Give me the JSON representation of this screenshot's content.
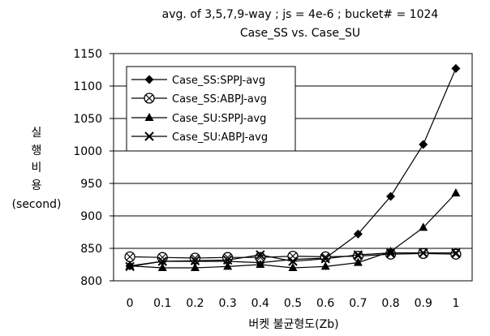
{
  "chart_data": {
    "type": "line",
    "title": "avg. of 3,5,7,9-way ; js = 4e-6 ; bucket# = 1024",
    "subtitle": "Case_SS vs. Case_SU",
    "xlabel": "버켓 불균형도(Zb)",
    "ylabel_lines": [
      "실",
      "행",
      "비",
      "용",
      "(second)"
    ],
    "categories": [
      "0",
      "0.1",
      "0.2",
      "0.3",
      "0.4",
      "0.5",
      "0.6",
      "0.7",
      "0.8",
      "0.9",
      "1"
    ],
    "ylim": [
      800,
      1150
    ],
    "yticks": [
      800,
      850,
      900,
      950,
      1000,
      1050,
      1100,
      1150
    ],
    "grid": true,
    "legend_position": "top-left",
    "series": [
      {
        "name": "Case_SS:SPPJ-avg",
        "marker": "diamond",
        "values": [
          823,
          830,
          830,
          830,
          828,
          833,
          835,
          872,
          930,
          1010,
          1127
        ]
      },
      {
        "name": "Case_SS:ABPJ-avg",
        "marker": "circle",
        "values": [
          837,
          836,
          835,
          836,
          836,
          838,
          837,
          838,
          841,
          842,
          841
        ]
      },
      {
        "name": "Case_SU:SPPJ-avg",
        "marker": "triangle",
        "values": [
          823,
          820,
          820,
          822,
          825,
          820,
          822,
          828,
          845,
          882,
          935
        ]
      },
      {
        "name": "Case_SU:ABPJ-avg",
        "marker": "x",
        "values": [
          822,
          830,
          831,
          832,
          840,
          830,
          834,
          840,
          843,
          843,
          843
        ]
      }
    ]
  }
}
